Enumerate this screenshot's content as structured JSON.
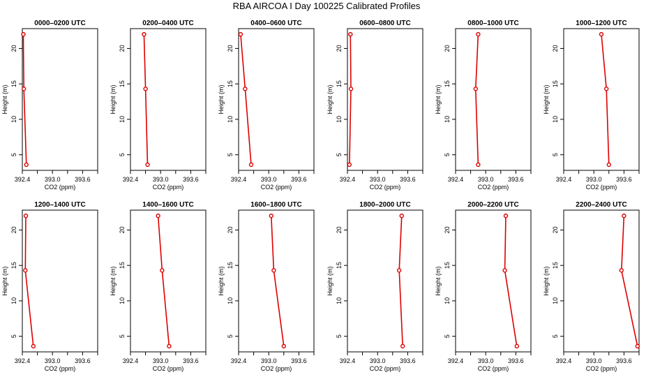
{
  "page": {
    "title": "RBA AIRCOA I  Day 100225  Calibrated Profiles"
  },
  "chart_data": {
    "type": "line",
    "xlabel": "CO2 (ppm)",
    "ylabel": "Height (m)",
    "xlim": [
      392.4,
      393.9
    ],
    "ylim": [
      2.8,
      22.8
    ],
    "xticks": [
      392.4,
      392.7,
      393.0,
      393.3,
      393.6,
      393.9
    ],
    "xtick_labels": [
      "392.4",
      "",
      "393.0",
      "",
      "393.6",
      ""
    ],
    "yticks": [
      5,
      10,
      15,
      20
    ],
    "yticks_labels": [
      "5",
      "10",
      "15",
      "20"
    ],
    "series_color": "#dd0000",
    "marker": "open-circle",
    "heights": [
      22.0,
      14.3,
      3.6
    ],
    "panels": [
      {
        "title": "0000–0200 UTC",
        "co2": [
          392.42,
          392.43,
          392.48
        ]
      },
      {
        "title": "0200–0400 UTC",
        "co2": [
          392.67,
          392.7,
          392.74
        ]
      },
      {
        "title": "0400–0600 UTC",
        "co2": [
          392.44,
          392.53,
          392.65
        ]
      },
      {
        "title": "0600–0800 UTC",
        "co2": [
          392.46,
          392.47,
          392.44
        ]
      },
      {
        "title": "0800–1000 UTC",
        "co2": [
          392.85,
          392.8,
          392.85
        ]
      },
      {
        "title": "1000–1200 UTC",
        "co2": [
          393.15,
          393.25,
          393.3
        ]
      },
      {
        "title": "1200–1400 UTC",
        "co2": [
          392.47,
          392.46,
          392.62
        ]
      },
      {
        "title": "1400–1600 UTC",
        "co2": [
          392.95,
          393.03,
          393.17
        ]
      },
      {
        "title": "1600–1800 UTC",
        "co2": [
          393.05,
          393.1,
          393.3
        ]
      },
      {
        "title": "1800–2000 UTC",
        "co2": [
          393.48,
          393.43,
          393.5
        ]
      },
      {
        "title": "2000–2200 UTC",
        "co2": [
          393.4,
          393.38,
          393.62
        ]
      },
      {
        "title": "2200–2400 UTC",
        "co2": [
          393.6,
          393.55,
          393.87
        ]
      }
    ]
  }
}
